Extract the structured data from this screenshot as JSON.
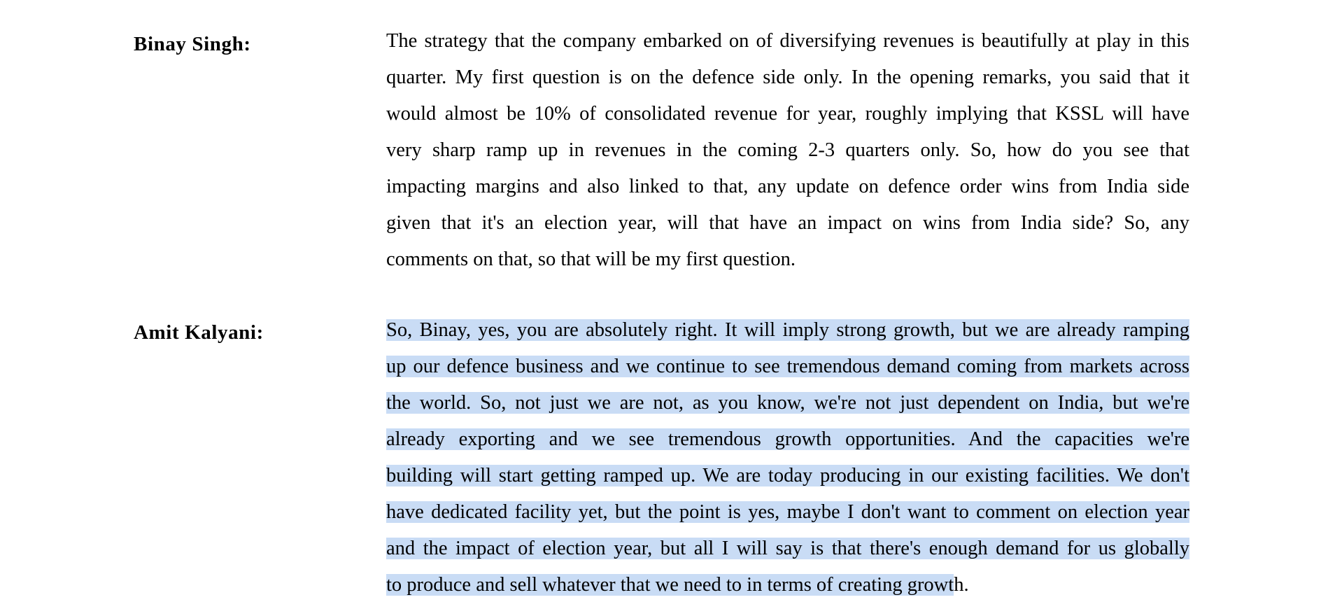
{
  "transcript": {
    "entries": [
      {
        "speaker": "Binay Singh:",
        "lines": [
          "The strategy that the company embarked on of diversifying revenues is beautifully at play in this",
          "quarter. My first question is on the defence side only. In the opening remarks, you said that it",
          "would almost be 10% of consolidated revenue for year, roughly implying that KSSL will have",
          "very sharp ramp up in revenues in the coming 2-3 quarters only. So, how do you see that",
          "impacting margins and also linked to that, any update on defence order wins from India side",
          "given that it's an election year, will that have an impact on wins from India side? So, any",
          "comments on that, so that will be my first question."
        ]
      },
      {
        "speaker": "Amit Kalyani:",
        "lines": [
          "So, Binay, yes, you are absolutely right. It will imply strong growth, but we are already ramping",
          "up our defence business and we continue to see tremendous demand coming from markets across",
          "the world. So, not just we are not, as you know, we're not just dependent on India, but we're",
          "already exporting and we see tremendous growth opportunities. And the capacities we're",
          "building will start getting ramped up. We are today producing in our existing facilities. We don't",
          "have dedicated facility yet, but the point is yes, maybe I don't want to comment on election year",
          "and the impact of election year, but all I will say is that there's enough demand for us globally"
        ],
        "last_line_selected": "to produce and sell whatever that we need to in terms of creating growt",
        "last_line_tail": "h."
      }
    ]
  },
  "colors": {
    "selection_highlight": "#c9dcf5",
    "text": "#000000",
    "background": "#ffffff"
  }
}
